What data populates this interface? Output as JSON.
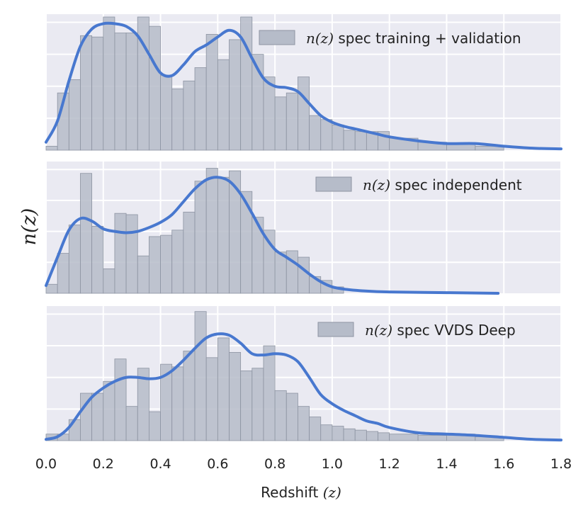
{
  "chart_data": {
    "type": "histogram",
    "xlabel": "Redshift",
    "xlabel_math": "(z)",
    "ylabel": "n(z)",
    "xlim": [
      0.0,
      1.8
    ],
    "xticks": [
      "0.0",
      "0.2",
      "0.4",
      "0.6",
      "0.8",
      "1.0",
      "1.2",
      "1.4",
      "1.6",
      "1.8"
    ],
    "colors": {
      "panel_bg": "#eaeaf2",
      "grid": "#ffffff",
      "hist_fill": "#b6bcc9",
      "hist_edge": "#8d94a2",
      "curve": "#4878cf"
    },
    "panels": [
      {
        "legend_math": "n(z)",
        "legend_label": "spec training + validation",
        "ymax": 1.0,
        "bins": [
          [
            0.0,
            0.04,
            0.03
          ],
          [
            0.04,
            0.08,
            0.43
          ],
          [
            0.08,
            0.12,
            0.53
          ],
          [
            0.12,
            0.16,
            0.86
          ],
          [
            0.16,
            0.2,
            0.85
          ],
          [
            0.2,
            0.24,
            1.0
          ],
          [
            0.24,
            0.28,
            0.88
          ],
          [
            0.28,
            0.32,
            0.88
          ],
          [
            0.32,
            0.36,
            1.0
          ],
          [
            0.36,
            0.4,
            0.93
          ],
          [
            0.4,
            0.44,
            0.56
          ],
          [
            0.44,
            0.48,
            0.46
          ],
          [
            0.48,
            0.52,
            0.52
          ],
          [
            0.52,
            0.56,
            0.62
          ],
          [
            0.56,
            0.6,
            0.87
          ],
          [
            0.6,
            0.64,
            0.68
          ],
          [
            0.64,
            0.68,
            0.83
          ],
          [
            0.68,
            0.72,
            1.0
          ],
          [
            0.72,
            0.76,
            0.72
          ],
          [
            0.76,
            0.8,
            0.55
          ],
          [
            0.8,
            0.84,
            0.4
          ],
          [
            0.84,
            0.88,
            0.43
          ],
          [
            0.88,
            0.92,
            0.55
          ],
          [
            0.92,
            0.96,
            0.26
          ],
          [
            0.96,
            1.0,
            0.23
          ],
          [
            1.0,
            1.04,
            0.19
          ],
          [
            1.04,
            1.08,
            0.15
          ],
          [
            1.08,
            1.12,
            0.14
          ],
          [
            1.12,
            1.16,
            0.14
          ],
          [
            1.16,
            1.2,
            0.14
          ],
          [
            1.2,
            1.3,
            0.09
          ],
          [
            1.3,
            1.4,
            0.06
          ],
          [
            1.4,
            1.5,
            0.05
          ],
          [
            1.5,
            1.6,
            0.03
          ]
        ],
        "curve": [
          [
            0.0,
            0.06
          ],
          [
            0.04,
            0.22
          ],
          [
            0.08,
            0.52
          ],
          [
            0.12,
            0.78
          ],
          [
            0.16,
            0.91
          ],
          [
            0.2,
            0.95
          ],
          [
            0.24,
            0.95
          ],
          [
            0.28,
            0.93
          ],
          [
            0.32,
            0.86
          ],
          [
            0.36,
            0.72
          ],
          [
            0.4,
            0.58
          ],
          [
            0.44,
            0.56
          ],
          [
            0.48,
            0.64
          ],
          [
            0.52,
            0.74
          ],
          [
            0.56,
            0.79
          ],
          [
            0.6,
            0.85
          ],
          [
            0.64,
            0.9
          ],
          [
            0.68,
            0.85
          ],
          [
            0.72,
            0.69
          ],
          [
            0.76,
            0.54
          ],
          [
            0.8,
            0.48
          ],
          [
            0.84,
            0.47
          ],
          [
            0.88,
            0.44
          ],
          [
            0.92,
            0.35
          ],
          [
            0.96,
            0.26
          ],
          [
            1.0,
            0.21
          ],
          [
            1.04,
            0.18
          ],
          [
            1.08,
            0.16
          ],
          [
            1.12,
            0.14
          ],
          [
            1.16,
            0.12
          ],
          [
            1.2,
            0.1
          ],
          [
            1.3,
            0.07
          ],
          [
            1.4,
            0.05
          ],
          [
            1.5,
            0.05
          ],
          [
            1.6,
            0.03
          ],
          [
            1.7,
            0.015
          ],
          [
            1.8,
            0.01
          ]
        ]
      },
      {
        "legend_math": "n(z)",
        "legend_label": "spec independent",
        "ymax": 1.0,
        "bins": [
          [
            0.0,
            0.04,
            0.07
          ],
          [
            0.04,
            0.08,
            0.31
          ],
          [
            0.08,
            0.12,
            0.53
          ],
          [
            0.12,
            0.16,
            0.93
          ],
          [
            0.16,
            0.2,
            0.52
          ],
          [
            0.2,
            0.24,
            0.19
          ],
          [
            0.24,
            0.28,
            0.62
          ],
          [
            0.28,
            0.32,
            0.61
          ],
          [
            0.32,
            0.36,
            0.29
          ],
          [
            0.36,
            0.4,
            0.44
          ],
          [
            0.4,
            0.44,
            0.45
          ],
          [
            0.44,
            0.48,
            0.49
          ],
          [
            0.48,
            0.52,
            0.63
          ],
          [
            0.52,
            0.56,
            0.87
          ],
          [
            0.56,
            0.6,
            0.97
          ],
          [
            0.6,
            0.64,
            0.9
          ],
          [
            0.64,
            0.68,
            0.95
          ],
          [
            0.68,
            0.72,
            0.79
          ],
          [
            0.72,
            0.76,
            0.59
          ],
          [
            0.76,
            0.8,
            0.49
          ],
          [
            0.8,
            0.84,
            0.32
          ],
          [
            0.84,
            0.88,
            0.33
          ],
          [
            0.88,
            0.92,
            0.28
          ],
          [
            0.92,
            0.96,
            0.13
          ],
          [
            0.96,
            1.0,
            0.1
          ],
          [
            1.0,
            1.04,
            0.05
          ]
        ],
        "curve": [
          [
            0.0,
            0.06
          ],
          [
            0.04,
            0.28
          ],
          [
            0.08,
            0.49
          ],
          [
            0.12,
            0.58
          ],
          [
            0.16,
            0.56
          ],
          [
            0.2,
            0.5
          ],
          [
            0.24,
            0.48
          ],
          [
            0.28,
            0.47
          ],
          [
            0.32,
            0.48
          ],
          [
            0.36,
            0.51
          ],
          [
            0.4,
            0.55
          ],
          [
            0.44,
            0.61
          ],
          [
            0.48,
            0.71
          ],
          [
            0.52,
            0.81
          ],
          [
            0.56,
            0.88
          ],
          [
            0.6,
            0.9
          ],
          [
            0.64,
            0.87
          ],
          [
            0.68,
            0.77
          ],
          [
            0.72,
            0.62
          ],
          [
            0.76,
            0.46
          ],
          [
            0.8,
            0.34
          ],
          [
            0.84,
            0.28
          ],
          [
            0.88,
            0.22
          ],
          [
            0.92,
            0.15
          ],
          [
            0.96,
            0.09
          ],
          [
            1.0,
            0.05
          ],
          [
            1.05,
            0.03
          ],
          [
            1.1,
            0.02
          ],
          [
            1.2,
            0.01
          ],
          [
            1.4,
            0.005
          ],
          [
            1.58,
            0.0
          ]
        ]
      },
      {
        "legend_math": "n(z)",
        "legend_label": "spec VVDS Deep",
        "ymax": 1.0,
        "bins": [
          [
            0.0,
            0.04,
            0.05
          ],
          [
            0.04,
            0.08,
            0.05
          ],
          [
            0.08,
            0.12,
            0.16
          ],
          [
            0.12,
            0.16,
            0.36
          ],
          [
            0.16,
            0.2,
            0.36
          ],
          [
            0.2,
            0.24,
            0.45
          ],
          [
            0.24,
            0.28,
            0.62
          ],
          [
            0.28,
            0.32,
            0.26
          ],
          [
            0.32,
            0.36,
            0.55
          ],
          [
            0.36,
            0.4,
            0.22
          ],
          [
            0.4,
            0.44,
            0.58
          ],
          [
            0.44,
            0.48,
            0.56
          ],
          [
            0.48,
            0.52,
            0.68
          ],
          [
            0.52,
            0.56,
            0.98
          ],
          [
            0.56,
            0.6,
            0.63
          ],
          [
            0.6,
            0.64,
            0.78
          ],
          [
            0.64,
            0.68,
            0.67
          ],
          [
            0.68,
            0.72,
            0.53
          ],
          [
            0.72,
            0.76,
            0.55
          ],
          [
            0.76,
            0.8,
            0.72
          ],
          [
            0.8,
            0.84,
            0.38
          ],
          [
            0.84,
            0.88,
            0.36
          ],
          [
            0.88,
            0.92,
            0.26
          ],
          [
            0.92,
            0.96,
            0.18
          ],
          [
            0.96,
            1.0,
            0.12
          ],
          [
            1.0,
            1.04,
            0.11
          ],
          [
            1.04,
            1.08,
            0.09
          ],
          [
            1.08,
            1.12,
            0.08
          ],
          [
            1.12,
            1.16,
            0.07
          ],
          [
            1.16,
            1.2,
            0.06
          ],
          [
            1.2,
            1.3,
            0.05
          ],
          [
            1.3,
            1.4,
            0.04
          ],
          [
            1.4,
            1.5,
            0.05
          ],
          [
            1.5,
            1.6,
            0.03
          ]
        ],
        "curve": [
          [
            0.0,
            0.01
          ],
          [
            0.04,
            0.03
          ],
          [
            0.08,
            0.1
          ],
          [
            0.12,
            0.22
          ],
          [
            0.16,
            0.33
          ],
          [
            0.2,
            0.4
          ],
          [
            0.24,
            0.45
          ],
          [
            0.28,
            0.48
          ],
          [
            0.32,
            0.48
          ],
          [
            0.36,
            0.47
          ],
          [
            0.4,
            0.48
          ],
          [
            0.44,
            0.53
          ],
          [
            0.48,
            0.61
          ],
          [
            0.52,
            0.7
          ],
          [
            0.56,
            0.78
          ],
          [
            0.6,
            0.81
          ],
          [
            0.64,
            0.8
          ],
          [
            0.68,
            0.74
          ],
          [
            0.72,
            0.66
          ],
          [
            0.76,
            0.65
          ],
          [
            0.8,
            0.66
          ],
          [
            0.84,
            0.65
          ],
          [
            0.88,
            0.6
          ],
          [
            0.92,
            0.48
          ],
          [
            0.96,
            0.35
          ],
          [
            1.0,
            0.28
          ],
          [
            1.04,
            0.23
          ],
          [
            1.08,
            0.19
          ],
          [
            1.12,
            0.15
          ],
          [
            1.16,
            0.13
          ],
          [
            1.2,
            0.1
          ],
          [
            1.3,
            0.06
          ],
          [
            1.4,
            0.05
          ],
          [
            1.5,
            0.04
          ],
          [
            1.6,
            0.025
          ],
          [
            1.7,
            0.01
          ],
          [
            1.8,
            0.005
          ]
        ]
      }
    ]
  }
}
